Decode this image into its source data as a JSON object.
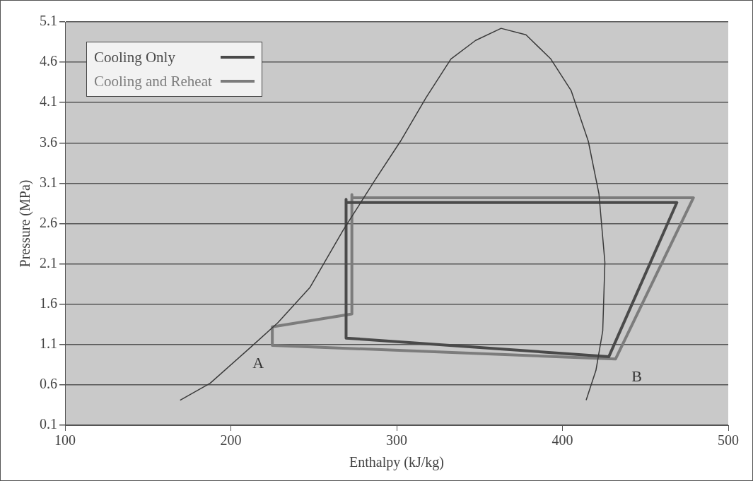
{
  "chart_data": {
    "type": "line",
    "xlabel": "Enthalpy (kJ/kg)",
    "ylabel": "Pressure (MPa)",
    "xlim": [
      100,
      500
    ],
    "xticks": [
      100,
      200,
      300,
      400,
      500
    ],
    "ylim": [
      0.1,
      5.1
    ],
    "yticks": [
      {
        "value": 0.1,
        "label": "0.1"
      },
      {
        "value": 0.6,
        "label": "0.6"
      },
      {
        "value": 1.1,
        "label": "1.1"
      },
      {
        "value": 1.6,
        "label": "1.6"
      },
      {
        "value": 2.1,
        "label": "2.1"
      },
      {
        "value": 2.6,
        "label": "2.6"
      },
      {
        "value": 3.1,
        "label": "3.1"
      },
      {
        "value": 3.6,
        "label": "3.6"
      },
      {
        "value": 4.1,
        "label": "4.1"
      },
      {
        "value": 4.6,
        "label": "4.6"
      },
      {
        "value": 5.1,
        "label": "5.1"
      }
    ],
    "grid": "y",
    "legend": "top left",
    "marker": "none",
    "line_style": "solid",
    "series": [
      {
        "color": "#3a3a3a",
        "x": [
          169.4,
          187.5,
          211.6,
          228.3,
          247.8,
          267.8,
          287.3,
          302.3,
          317.7,
          332.7,
          347.6,
          363.0,
          378.0,
          393.0,
          405.2,
          415.6,
          422.0,
          425.6,
          424.3,
          420.2,
          414.3
        ],
        "values": [
          0.41,
          0.62,
          1.06,
          1.37,
          1.81,
          2.52,
          3.15,
          3.62,
          4.16,
          4.64,
          4.87,
          5.02,
          4.94,
          4.64,
          4.25,
          3.62,
          2.97,
          2.12,
          1.27,
          0.78,
          0.41
        ]
      },
      {
        "name": "Cooling Only",
        "color": "#4a4a4a",
        "x": [
          269.5,
          269.5,
          428,
          469,
          269.5
        ],
        "values": [
          2.9,
          1.18,
          0.95,
          2.86,
          2.86
        ]
      },
      {
        "name": "Cooling and Reheat",
        "color": "#7c7c7c",
        "x": [
          273,
          273,
          225,
          225,
          432,
          479,
          273
        ],
        "values": [
          2.96,
          1.48,
          1.32,
          1.09,
          0.92,
          2.92,
          2.92
        ]
      }
    ],
    "annotations": [
      {
        "text": "A",
        "x": 225,
        "y": 1.09
      },
      {
        "text": "B",
        "x": 432,
        "y": 0.92
      }
    ]
  }
}
